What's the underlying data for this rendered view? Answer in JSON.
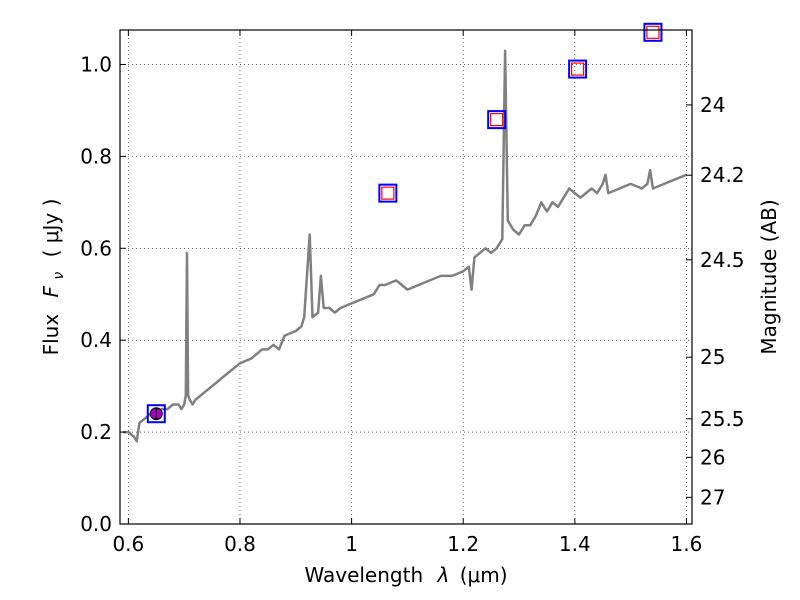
{
  "chart_data": {
    "type": "line",
    "xlabel_text": "Wavelength",
    "xlabel_symbol": "λ",
    "xlabel_unit": "(μm)",
    "ylabel_text": "Flux",
    "ylabel_symbol": "F",
    "ylabel_subscript": "ν",
    "ylabel_unit": "( μJy )",
    "y2label": "Magnitude (AB)",
    "xlim": [
      0.585,
      1.61
    ],
    "ylim": [
      0.0,
      1.075
    ],
    "grid": true,
    "x_ticks": [
      {
        "value": 0.6,
        "label": "0.6"
      },
      {
        "value": 0.8,
        "label": "0.8"
      },
      {
        "value": 1.0,
        "label": "1"
      },
      {
        "value": 1.2,
        "label": "1.2"
      },
      {
        "value": 1.4,
        "label": "1.4"
      },
      {
        "value": 1.6,
        "label": "1.6"
      }
    ],
    "y_ticks": [
      {
        "value": 0.0,
        "label": "0.0"
      },
      {
        "value": 0.2,
        "label": "0.2"
      },
      {
        "value": 0.4,
        "label": "0.4"
      },
      {
        "value": 0.6,
        "label": "0.6"
      },
      {
        "value": 0.8,
        "label": "0.8"
      },
      {
        "value": 1.0,
        "label": "1.0"
      }
    ],
    "y2_ticks": [
      {
        "flux": 0.912,
        "label": "24"
      },
      {
        "flux": 0.759,
        "label": "24.2"
      },
      {
        "flux": 0.575,
        "label": "24.5"
      },
      {
        "flux": 0.363,
        "label": "25"
      },
      {
        "flux": 0.229,
        "label": "25.5"
      },
      {
        "flux": 0.145,
        "label": "26"
      },
      {
        "flux": 0.058,
        "label": "27"
      }
    ],
    "series": [
      {
        "color": "#808080",
        "points": [
          [
            0.59,
            0.2
          ],
          [
            0.6,
            0.2
          ],
          [
            0.61,
            0.19
          ],
          [
            0.615,
            0.18
          ],
          [
            0.62,
            0.22
          ],
          [
            0.63,
            0.23
          ],
          [
            0.64,
            0.24
          ],
          [
            0.65,
            0.245
          ],
          [
            0.66,
            0.25
          ],
          [
            0.67,
            0.25
          ],
          [
            0.68,
            0.26
          ],
          [
            0.69,
            0.26
          ],
          [
            0.695,
            0.25
          ],
          [
            0.7,
            0.26
          ],
          [
            0.703,
            0.28
          ],
          [
            0.705,
            0.59
          ],
          [
            0.707,
            0.28
          ],
          [
            0.71,
            0.27
          ],
          [
            0.715,
            0.26
          ],
          [
            0.72,
            0.27
          ],
          [
            0.73,
            0.28
          ],
          [
            0.74,
            0.29
          ],
          [
            0.75,
            0.3
          ],
          [
            0.76,
            0.31
          ],
          [
            0.77,
            0.32
          ],
          [
            0.78,
            0.33
          ],
          [
            0.79,
            0.34
          ],
          [
            0.8,
            0.35
          ],
          [
            0.82,
            0.36
          ],
          [
            0.84,
            0.38
          ],
          [
            0.85,
            0.38
          ],
          [
            0.86,
            0.39
          ],
          [
            0.87,
            0.38
          ],
          [
            0.88,
            0.41
          ],
          [
            0.9,
            0.42
          ],
          [
            0.91,
            0.43
          ],
          [
            0.915,
            0.45
          ],
          [
            0.925,
            0.63
          ],
          [
            0.93,
            0.45
          ],
          [
            0.94,
            0.46
          ],
          [
            0.945,
            0.54
          ],
          [
            0.95,
            0.47
          ],
          [
            0.96,
            0.47
          ],
          [
            0.97,
            0.46
          ],
          [
            0.98,
            0.47
          ],
          [
            1.0,
            0.48
          ],
          [
            1.02,
            0.49
          ],
          [
            1.04,
            0.5
          ],
          [
            1.05,
            0.52
          ],
          [
            1.06,
            0.52
          ],
          [
            1.08,
            0.53
          ],
          [
            1.1,
            0.51
          ],
          [
            1.12,
            0.52
          ],
          [
            1.14,
            0.53
          ],
          [
            1.16,
            0.54
          ],
          [
            1.18,
            0.54
          ],
          [
            1.2,
            0.55
          ],
          [
            1.21,
            0.56
          ],
          [
            1.215,
            0.51
          ],
          [
            1.22,
            0.58
          ],
          [
            1.23,
            0.59
          ],
          [
            1.24,
            0.6
          ],
          [
            1.25,
            0.59
          ],
          [
            1.26,
            0.6
          ],
          [
            1.27,
            0.62
          ],
          [
            1.275,
            1.03
          ],
          [
            1.28,
            0.66
          ],
          [
            1.29,
            0.64
          ],
          [
            1.3,
            0.63
          ],
          [
            1.31,
            0.65
          ],
          [
            1.32,
            0.65
          ],
          [
            1.33,
            0.67
          ],
          [
            1.34,
            0.7
          ],
          [
            1.35,
            0.68
          ],
          [
            1.36,
            0.7
          ],
          [
            1.37,
            0.69
          ],
          [
            1.38,
            0.71
          ],
          [
            1.39,
            0.73
          ],
          [
            1.4,
            0.72
          ],
          [
            1.41,
            0.71
          ],
          [
            1.42,
            0.72
          ],
          [
            1.43,
            0.73
          ],
          [
            1.44,
            0.72
          ],
          [
            1.45,
            0.74
          ],
          [
            1.455,
            0.76
          ],
          [
            1.46,
            0.72
          ],
          [
            1.48,
            0.73
          ],
          [
            1.5,
            0.74
          ],
          [
            1.52,
            0.73
          ],
          [
            1.53,
            0.74
          ],
          [
            1.535,
            0.77
          ],
          [
            1.54,
            0.73
          ],
          [
            1.56,
            0.74
          ],
          [
            1.58,
            0.75
          ],
          [
            1.6,
            0.76
          ]
        ]
      }
    ],
    "photometry": [
      {
        "x": 0.65,
        "y": 0.24,
        "detected": true
      },
      {
        "x": 1.065,
        "y": 0.72,
        "detected": false
      },
      {
        "x": 1.26,
        "y": 0.88,
        "detected": false
      },
      {
        "x": 1.405,
        "y": 0.99,
        "detected": false
      },
      {
        "x": 1.54,
        "y": 1.07,
        "detected": false
      }
    ],
    "colors": {
      "spectrum": "#808080",
      "marker_outer": "#0000ff",
      "marker_inner": "#ff0000",
      "detected_fill": "#aa00cc"
    }
  }
}
